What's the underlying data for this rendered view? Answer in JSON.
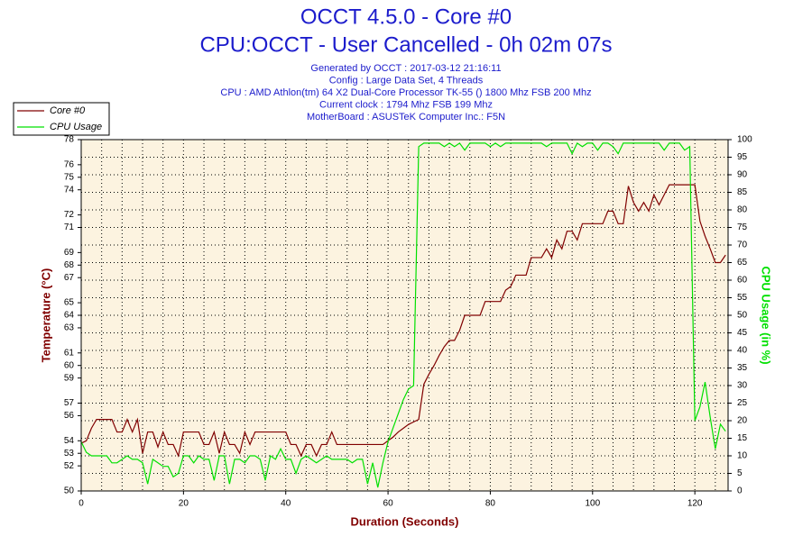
{
  "chart_data": {
    "type": "line",
    "title": "OCCT 4.5.0 - Core #0",
    "subtitle": "CPU:OCCT - User Cancelled - 0h 02m 07s",
    "info": [
      "Generated by OCCT : 2017-03-12 21:16:11",
      "Config : Large Data Set, 4 Threads",
      "CPU : AMD Athlon(tm) 64 X2 Dual-Core Processor TK-55 () 1800 Mhz FSB 200 Mhz",
      "Current clock : 1794 Mhz FSB 199 Mhz",
      "MotherBoard : ASUSTeK Computer Inc.: F5N"
    ],
    "xlabel": "Duration (Seconds)",
    "ylabel": "Temperature (°C)",
    "y2label": "CPU Usage (in %)",
    "x": [
      0,
      1,
      2,
      3,
      4,
      5,
      6,
      7,
      8,
      9,
      10,
      11,
      12,
      13,
      14,
      15,
      16,
      17,
      18,
      19,
      20,
      21,
      22,
      23,
      24,
      25,
      26,
      27,
      28,
      29,
      30,
      31,
      32,
      33,
      34,
      35,
      36,
      37,
      38,
      39,
      40,
      41,
      42,
      43,
      44,
      45,
      46,
      47,
      48,
      49,
      50,
      51,
      52,
      53,
      54,
      55,
      56,
      57,
      58,
      59,
      60,
      61,
      62,
      63,
      64,
      65,
      66,
      67,
      68,
      69,
      70,
      71,
      72,
      73,
      74,
      75,
      76,
      77,
      78,
      79,
      80,
      81,
      82,
      83,
      84,
      85,
      86,
      87,
      88,
      89,
      90,
      91,
      92,
      93,
      94,
      95,
      96,
      97,
      98,
      99,
      100,
      101,
      102,
      103,
      104,
      105,
      106,
      107,
      108,
      109,
      110,
      111,
      112,
      113,
      114,
      115,
      116,
      117,
      118,
      119,
      120,
      121,
      122,
      123,
      124,
      125,
      126
    ],
    "xlim": [
      0,
      126.5
    ],
    "xticks": [
      0,
      20,
      40,
      60,
      80,
      100,
      120
    ],
    "ylim": [
      50,
      78
    ],
    "yticks": [
      50,
      52,
      53,
      54,
      56,
      57,
      59,
      60,
      61,
      63,
      64,
      65,
      67,
      68,
      69,
      71,
      72,
      74,
      75,
      76,
      78
    ],
    "y2lim": [
      0,
      100
    ],
    "y2ticks": [
      0,
      5,
      10,
      15,
      20,
      25,
      30,
      35,
      40,
      45,
      50,
      55,
      60,
      65,
      70,
      75,
      80,
      85,
      90,
      95,
      100
    ],
    "grid": true,
    "legend": "upper left",
    "background": "#fcf3e0",
    "series": [
      {
        "name": "Core #0",
        "color": "#800000",
        "values": [
          53.8,
          54,
          55,
          55.7,
          55.7,
          55.7,
          55.7,
          54.7,
          54.7,
          55.7,
          54.7,
          55.7,
          53,
          54.7,
          54.7,
          53.5,
          54.7,
          53.7,
          53.7,
          52.8,
          54.7,
          54.7,
          54.7,
          54.7,
          53.7,
          53.7,
          54.7,
          53,
          54.7,
          53.7,
          53.7,
          53,
          54.7,
          53.7,
          54.7,
          54.7,
          54.7,
          54.7,
          54.7,
          54.7,
          54.7,
          53.7,
          53.7,
          52.8,
          53.7,
          53.7,
          52.8,
          53.7,
          53.7,
          54.7,
          53.7,
          53.7,
          53.7,
          53.7,
          53.7,
          53.7,
          53.7,
          53.7,
          53.7,
          53.7,
          54,
          54.3,
          54.7,
          55,
          55.3,
          55.5,
          55.7,
          58.5,
          59.3,
          60,
          60.8,
          61.5,
          62,
          62,
          62.8,
          64,
          64,
          64,
          64,
          65.1,
          65.1,
          65.1,
          65.1,
          66,
          66.3,
          67.2,
          67.2,
          67.2,
          68.6,
          68.6,
          68.6,
          69.3,
          68.6,
          70,
          69.3,
          70.7,
          70.7,
          70,
          71.3,
          71.3,
          71.3,
          71.3,
          71.3,
          72.3,
          72.3,
          71.3,
          71.3,
          74.3,
          73,
          72.3,
          73,
          72.3,
          73.6,
          72.8,
          73.6,
          74.4,
          74.4,
          74.4,
          74.4,
          74.4,
          74.4,
          71.5,
          70.3,
          69.3,
          68.2,
          68.2,
          68.8
        ]
      },
      {
        "name": "CPU Usage",
        "color": "#00e000",
        "axis": "y2",
        "values": [
          14,
          11,
          10,
          10,
          10,
          10,
          8,
          8,
          9,
          10,
          9,
          9,
          8,
          2,
          9,
          8,
          7,
          7,
          4,
          5,
          10,
          10,
          8,
          10,
          9,
          9,
          3,
          10,
          10,
          2,
          9,
          9,
          8,
          10,
          10,
          9,
          3,
          10,
          9,
          12,
          9,
          9,
          5,
          9,
          10,
          9,
          8,
          9,
          10,
          9,
          9,
          9,
          9,
          8,
          9,
          9,
          2,
          8,
          1,
          8,
          14,
          18,
          22,
          26,
          29,
          30,
          98,
          99,
          99,
          99,
          99,
          98,
          99,
          98,
          99,
          97,
          99,
          99,
          99,
          99,
          98,
          99,
          98,
          99,
          99,
          99,
          99,
          99,
          99,
          99,
          99,
          98,
          99,
          99,
          99,
          99,
          96,
          99,
          98,
          99,
          99,
          97,
          99,
          99,
          98,
          96,
          99,
          99,
          99,
          99,
          99,
          99,
          99,
          99,
          97,
          99,
          99,
          99,
          97,
          98,
          20,
          24,
          31,
          21,
          12,
          19,
          17
        ]
      }
    ]
  }
}
